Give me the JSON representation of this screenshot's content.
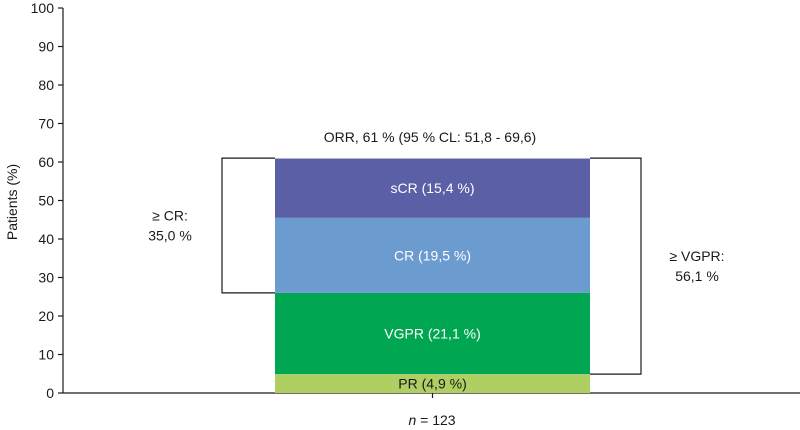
{
  "chart_data": {
    "type": "bar",
    "stacked": true,
    "ylabel": "Patients (%)",
    "ylim": [
      0,
      100
    ],
    "yticks": [
      0,
      10,
      20,
      30,
      40,
      50,
      60,
      70,
      80,
      90,
      100
    ],
    "grid": false,
    "xlabel_italic": "n",
    "xlabel_rest": " = 123",
    "segments": [
      {
        "name": "PR",
        "label": "PR (4,9 %)",
        "value": 4.9,
        "color": "#b0cf63",
        "text_color": "#1a1a1a"
      },
      {
        "name": "VGPR",
        "label": "VGPR (21,1 %)",
        "value": 21.1,
        "color": "#00a651",
        "text_color": "#ffffff"
      },
      {
        "name": "CR",
        "label": "CR (19,5 %)",
        "value": 19.5,
        "color": "#6b9bcf",
        "text_color": "#ffffff"
      },
      {
        "name": "sCR",
        "label": "sCR (15,4 %)",
        "value": 15.4,
        "color": "#5b5fa6",
        "text_color": "#ffffff"
      }
    ],
    "total_label": "ORR, 61 % (95 % CL: 51,8 - 69,6)",
    "brackets": [
      {
        "side": "left",
        "from": 26.0,
        "to": 61.0,
        "lines": [
          "≥ CR:",
          "35,0 %"
        ]
      },
      {
        "side": "right",
        "from": 4.9,
        "to": 61.0,
        "lines": [
          "≥ VGPR:",
          "56,1 %"
        ]
      }
    ]
  }
}
